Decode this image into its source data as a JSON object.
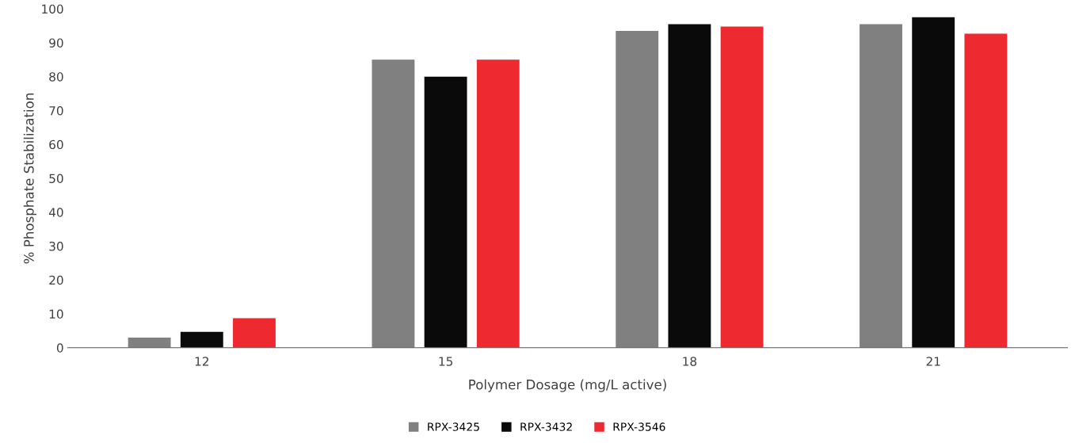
{
  "chart_data": {
    "type": "bar",
    "xlabel": "Polymer Dosage (mg/L active)",
    "ylabel": "% Phosphate Stabilization",
    "categories": [
      "12",
      "15",
      "18",
      "21"
    ],
    "series": [
      {
        "name": "RPX-3425",
        "color": "#808080",
        "values": [
          3,
          85,
          93.5,
          95.5
        ]
      },
      {
        "name": "RPX-3432",
        "color": "#0a0a0a",
        "values": [
          4.7,
          80,
          95.5,
          97.5
        ]
      },
      {
        "name": "RPX-3546",
        "color": "#ee2a30",
        "values": [
          8.7,
          85,
          94.8,
          92.7
        ]
      }
    ],
    "ylim": [
      0,
      100
    ],
    "yticks": [
      0,
      10,
      20,
      30,
      40,
      50,
      60,
      70,
      80,
      90,
      100
    ],
    "grid": false,
    "legend": "bottom"
  }
}
